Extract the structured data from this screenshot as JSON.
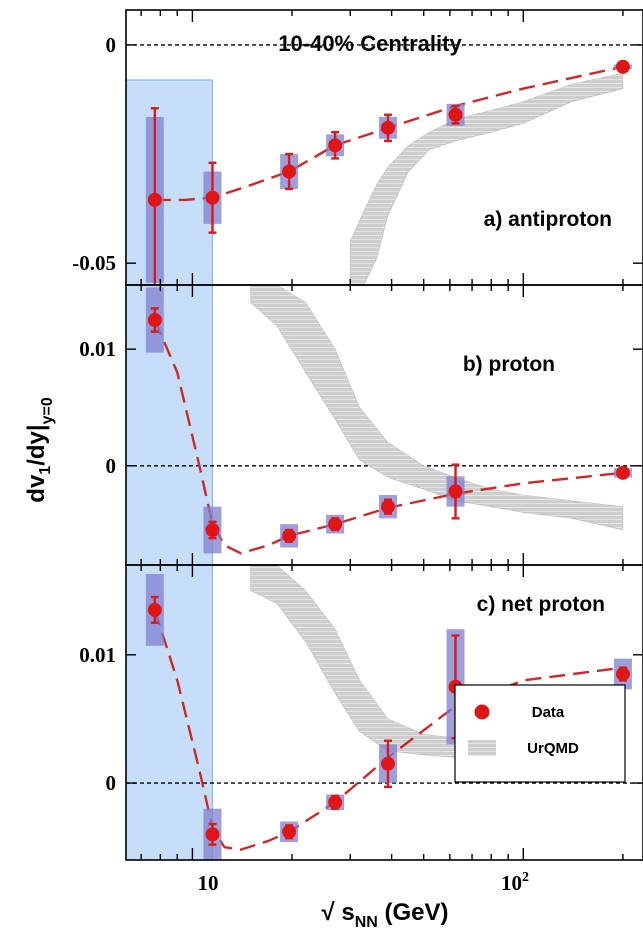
{
  "chart_data": {
    "type": "scatter",
    "title": "10-40% Centrality",
    "xlabel": "√ s_NN (GeV)",
    "ylabel": "dv_1/dy|_{y=0}",
    "xscale": "log",
    "xlim": [
      6.3,
      230
    ],
    "x_tick_labels": [
      "10",
      "10^2"
    ],
    "highlight_region_x": [
      6.3,
      11.5
    ],
    "highlight_color": "#bcd8f7",
    "colors": {
      "data": "#e01515",
      "fit": "#cc2a2a",
      "systematic": "#7f7fcf",
      "urqmd": "#c8c8c8"
    },
    "legend": {
      "position": "bottom-right",
      "entries": [
        "Data",
        "UrQMD"
      ]
    },
    "x": [
      7.7,
      11.5,
      19.6,
      27,
      39,
      62.4,
      200
    ],
    "panels": [
      {
        "label": "a) antiproton",
        "ylim": [
          -0.055,
          0.008
        ],
        "yticks": [
          {
            "value": 0,
            "label": "0"
          },
          {
            "value": -0.05,
            "label": "-0.05"
          }
        ],
        "data": {
          "name": "Data",
          "y": [
            -0.0355,
            -0.035,
            -0.029,
            -0.023,
            -0.019,
            -0.016,
            -0.005
          ],
          "stat_err": [
            0.021,
            0.008,
            0.004,
            0.003,
            0.003,
            0.002,
            0.0005
          ],
          "sys_err": [
            0.019,
            0.006,
            0.004,
            0.0025,
            0.0025,
            0.0025,
            0.0005
          ]
        },
        "fit_x": [
          7.7,
          9.5,
          11.5,
          14.5,
          19.6,
          27,
          39,
          62.4,
          100,
          200
        ],
        "fit_y": [
          -0.0355,
          -0.0355,
          -0.035,
          -0.0325,
          -0.029,
          -0.023,
          -0.019,
          -0.014,
          -0.01,
          -0.005
        ],
        "urqmd": {
          "name": "UrQMD",
          "x": [
            30,
            33,
            36,
            39,
            45,
            52,
            62.4,
            80,
            100,
            140,
            200
          ],
          "low": [
            -0.055,
            -0.055,
            -0.049,
            -0.039,
            -0.029,
            -0.024,
            -0.022,
            -0.02,
            -0.018,
            -0.013,
            -0.01
          ],
          "high": [
            -0.045,
            -0.038,
            -0.032,
            -0.028,
            -0.023,
            -0.02,
            -0.017,
            -0.015,
            -0.013,
            -0.009,
            -0.0065
          ]
        }
      },
      {
        "label": "b) proton",
        "ylim": [
          -0.0085,
          0.0155
        ],
        "yticks": [
          {
            "value": 0.01,
            "label": "0.01"
          },
          {
            "value": 0,
            "label": "0"
          }
        ],
        "data": {
          "name": "Data",
          "y": [
            0.0125,
            -0.0055,
            -0.006,
            -0.005,
            -0.0035,
            -0.0022,
            -0.0006
          ],
          "stat_err": [
            0.001,
            0.0007,
            0.0005,
            0.0005,
            0.0006,
            0.0023,
            0.0002
          ],
          "sys_err": [
            0.0028,
            0.002,
            0.001,
            0.0008,
            0.001,
            0.0013,
            0.0004
          ]
        },
        "fit_x": [
          7.7,
          9.0,
          10.5,
          11.5,
          12.5,
          14,
          17,
          19.6,
          27,
          39,
          62.4,
          100,
          200
        ],
        "fit_y": [
          0.0125,
          0.008,
          0.0,
          -0.005,
          -0.0068,
          -0.0075,
          -0.0068,
          -0.006,
          -0.005,
          -0.0036,
          -0.0024,
          -0.0015,
          -0.0006
        ],
        "urqmd": {
          "name": "UrQMD",
          "x": [
            15,
            18,
            22,
            27,
            32,
            39,
            50,
            62.4,
            80,
            100,
            140,
            200
          ],
          "low": [
            0.014,
            0.012,
            0.008,
            0.004,
            0.0005,
            -0.001,
            -0.002,
            -0.003,
            -0.0035,
            -0.004,
            -0.0045,
            -0.0055
          ],
          "high": [
            0.0155,
            0.0155,
            0.014,
            0.01,
            0.005,
            0.002,
            0.0,
            -0.001,
            -0.002,
            -0.0025,
            -0.003,
            -0.0035
          ]
        }
      },
      {
        "label": "c) net proton",
        "ylim": [
          -0.006,
          0.017
        ],
        "yticks": [
          {
            "value": 0.01,
            "label": "0.01"
          },
          {
            "value": 0,
            "label": "0"
          }
        ],
        "data": {
          "name": "Data",
          "y": [
            0.0135,
            -0.004,
            -0.0038,
            -0.0015,
            0.0015,
            0.0075,
            0.0085
          ],
          "stat_err": [
            0.001,
            0.0008,
            0.0005,
            0.0005,
            0.0018,
            0.004,
            0.0005
          ],
          "sys_err": [
            0.0028,
            0.002,
            0.0008,
            0.0006,
            0.0015,
            0.0045,
            0.0012
          ]
        },
        "fit_x": [
          7.7,
          9.0,
          10.5,
          11.5,
          12.5,
          14,
          17,
          19.6,
          27,
          39,
          62.4,
          100,
          200
        ],
        "fit_y": [
          0.0135,
          0.008,
          0.001,
          -0.0035,
          -0.005,
          -0.0052,
          -0.0045,
          -0.0038,
          -0.0015,
          0.002,
          0.006,
          0.008,
          0.009
        ],
        "urqmd": {
          "name": "UrQMD",
          "x": [
            15,
            18,
            22,
            27,
            32,
            39,
            50,
            62.4,
            80,
            100,
            140,
            200
          ],
          "low": [
            0.015,
            0.014,
            0.011,
            0.007,
            0.004,
            0.0025,
            0.0022,
            0.002,
            0.0018,
            0.0016,
            0.0013,
            0.001
          ],
          "high": [
            0.017,
            0.017,
            0.015,
            0.012,
            0.008,
            0.005,
            0.0038,
            0.0035,
            0.0033,
            0.003,
            0.0027,
            0.0025
          ]
        }
      }
    ]
  }
}
